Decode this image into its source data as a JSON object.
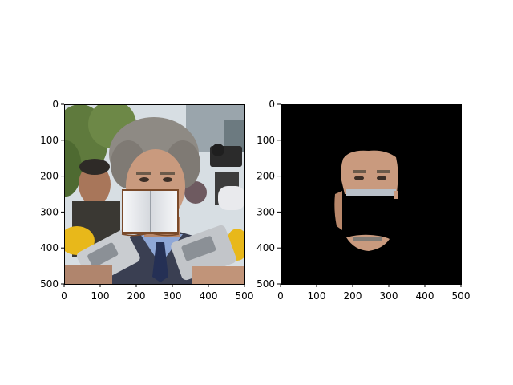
{
  "chart_data": [
    {
      "type": "image",
      "panel": "left",
      "content": "photo of a man with gray curly hair surrounded by microphones and press recorders; an open book icon is pasted over the lower half of his face",
      "xlim": [
        0,
        500
      ],
      "ylim": [
        500,
        0
      ],
      "xticks": [
        "0",
        "100",
        "200",
        "300",
        "400",
        "500"
      ],
      "yticks": [
        "0",
        "100",
        "200",
        "300",
        "400",
        "500"
      ],
      "occluder": {
        "kind": "open-book",
        "x0": 160,
        "x1": 315,
        "y0": 243,
        "y1": 355
      }
    },
    {
      "type": "image",
      "panel": "right",
      "content": "segmentation mask: black background showing only the visible skin of the face; the region covered by the book is blacked out",
      "xlim": [
        0,
        500
      ],
      "ylim": [
        500,
        0
      ],
      "xticks": [
        "0",
        "100",
        "200",
        "300",
        "400",
        "500"
      ],
      "yticks": [
        "0",
        "100",
        "200",
        "300",
        "400",
        "500"
      ],
      "background": "#000000"
    }
  ],
  "colors": {
    "skin": "#c99a7e",
    "hair": "#8e8a84",
    "suit": "#3a3f52",
    "shirt": "#8fa7d6",
    "tie": "#253055",
    "microphone_yellow": "#e8b81a",
    "recorder": "#c9ccd0",
    "foliage": "#5f7a3d",
    "sky": "#d7dee3",
    "book_page": "#eef0f3",
    "book_cover": "#7a4a2a",
    "mask_background": "#000000"
  }
}
